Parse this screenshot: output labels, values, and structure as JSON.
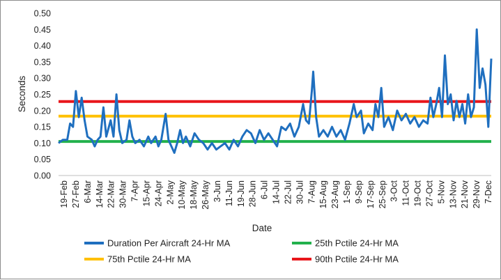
{
  "chart_data": {
    "type": "line",
    "title": "",
    "xlabel": "Date",
    "ylabel": "Seconds",
    "ylim": [
      0,
      0.5
    ],
    "y_ticks": [
      "0.00",
      "0.05",
      "0.10",
      "0.15",
      "0.20",
      "0.25",
      "0.30",
      "0.35",
      "0.40",
      "0.45",
      "0.50"
    ],
    "grid": false,
    "legend_position": "bottom",
    "x_range": [
      "2021-02-19",
      "2021-12-15"
    ],
    "x_tick_labels": [
      "19-Feb",
      "27-Feb",
      "6-Mar",
      "14-Mar",
      "22-Mar",
      "30-Mar",
      "7-Apr",
      "15-Apr",
      "24-Apr",
      "2-May",
      "10-May",
      "18-May",
      "26-May",
      "3-Jun",
      "11-Jun",
      "19-Jun",
      "28-Jun",
      "6-Jul",
      "14-Jul",
      "22-Jul",
      "30-Jul",
      "7-Aug",
      "15-Aug",
      "23-Aug",
      "1-Sep",
      "9-Sep",
      "17-Sep",
      "25-Sep",
      "3-Oct",
      "11-Oct",
      "19-Oct",
      "27-Oct",
      "5-Nov",
      "13-Nov",
      "21-Nov",
      "29-Nov",
      "7-Dec"
    ],
    "series": [
      {
        "name": "Duration Per Aircraft 24-Hr MA",
        "color": "#1f6fbf",
        "points": [
          [
            "2021-02-19",
            0.1
          ],
          [
            "2021-02-22",
            0.11
          ],
          [
            "2021-02-25",
            0.11
          ],
          [
            "2021-02-27",
            0.16
          ],
          [
            "2021-03-01",
            0.15
          ],
          [
            "2021-03-03",
            0.26
          ],
          [
            "2021-03-05",
            0.18
          ],
          [
            "2021-03-07",
            0.24
          ],
          [
            "2021-03-09",
            0.17
          ],
          [
            "2021-03-11",
            0.12
          ],
          [
            "2021-03-14",
            0.11
          ],
          [
            "2021-03-16",
            0.09
          ],
          [
            "2021-03-18",
            0.11
          ],
          [
            "2021-03-20",
            0.12
          ],
          [
            "2021-03-22",
            0.21
          ],
          [
            "2021-03-24",
            0.12
          ],
          [
            "2021-03-27",
            0.17
          ],
          [
            "2021-03-29",
            0.12
          ],
          [
            "2021-03-31",
            0.25
          ],
          [
            "2021-04-02",
            0.14
          ],
          [
            "2021-04-04",
            0.1
          ],
          [
            "2021-04-07",
            0.11
          ],
          [
            "2021-04-09",
            0.17
          ],
          [
            "2021-04-11",
            0.12
          ],
          [
            "2021-04-13",
            0.1
          ],
          [
            "2021-04-16",
            0.11
          ],
          [
            "2021-04-19",
            0.09
          ],
          [
            "2021-04-22",
            0.12
          ],
          [
            "2021-04-24",
            0.1
          ],
          [
            "2021-04-27",
            0.12
          ],
          [
            "2021-04-29",
            0.09
          ],
          [
            "2021-05-01",
            0.11
          ],
          [
            "2021-05-04",
            0.19
          ],
          [
            "2021-05-06",
            0.11
          ],
          [
            "2021-05-08",
            0.09
          ],
          [
            "2021-05-10",
            0.07
          ],
          [
            "2021-05-12",
            0.1
          ],
          [
            "2021-05-14",
            0.14
          ],
          [
            "2021-05-16",
            0.1
          ],
          [
            "2021-05-18",
            0.12
          ],
          [
            "2021-05-21",
            0.09
          ],
          [
            "2021-05-24",
            0.13
          ],
          [
            "2021-05-27",
            0.11
          ],
          [
            "2021-05-30",
            0.1
          ],
          [
            "2021-06-02",
            0.08
          ],
          [
            "2021-06-05",
            0.1
          ],
          [
            "2021-06-08",
            0.08
          ],
          [
            "2021-06-11",
            0.09
          ],
          [
            "2021-06-14",
            0.1
          ],
          [
            "2021-06-17",
            0.08
          ],
          [
            "2021-06-20",
            0.11
          ],
          [
            "2021-06-23",
            0.09
          ],
          [
            "2021-06-26",
            0.12
          ],
          [
            "2021-06-29",
            0.14
          ],
          [
            "2021-07-02",
            0.13
          ],
          [
            "2021-07-05",
            0.1
          ],
          [
            "2021-07-08",
            0.14
          ],
          [
            "2021-07-11",
            0.11
          ],
          [
            "2021-07-14",
            0.13
          ],
          [
            "2021-07-17",
            0.11
          ],
          [
            "2021-07-20",
            0.09
          ],
          [
            "2021-07-23",
            0.15
          ],
          [
            "2021-07-26",
            0.14
          ],
          [
            "2021-07-29",
            0.16
          ],
          [
            "2021-08-01",
            0.12
          ],
          [
            "2021-08-04",
            0.15
          ],
          [
            "2021-08-07",
            0.22
          ],
          [
            "2021-08-09",
            0.17
          ],
          [
            "2021-08-11",
            0.16
          ],
          [
            "2021-08-13",
            0.26
          ],
          [
            "2021-08-14",
            0.32
          ],
          [
            "2021-08-16",
            0.18
          ],
          [
            "2021-08-18",
            0.12
          ],
          [
            "2021-08-21",
            0.14
          ],
          [
            "2021-08-24",
            0.12
          ],
          [
            "2021-08-27",
            0.15
          ],
          [
            "2021-08-30",
            0.12
          ],
          [
            "2021-09-02",
            0.14
          ],
          [
            "2021-09-05",
            0.11
          ],
          [
            "2021-09-08",
            0.16
          ],
          [
            "2021-09-11",
            0.22
          ],
          [
            "2021-09-13",
            0.18
          ],
          [
            "2021-09-16",
            0.2
          ],
          [
            "2021-09-18",
            0.13
          ],
          [
            "2021-09-21",
            0.16
          ],
          [
            "2021-09-24",
            0.14
          ],
          [
            "2021-09-26",
            0.22
          ],
          [
            "2021-09-28",
            0.18
          ],
          [
            "2021-09-30",
            0.27
          ],
          [
            "2021-10-02",
            0.15
          ],
          [
            "2021-10-05",
            0.18
          ],
          [
            "2021-10-08",
            0.14
          ],
          [
            "2021-10-11",
            0.2
          ],
          [
            "2021-10-14",
            0.17
          ],
          [
            "2021-10-17",
            0.19
          ],
          [
            "2021-10-20",
            0.16
          ],
          [
            "2021-10-23",
            0.18
          ],
          [
            "2021-10-26",
            0.15
          ],
          [
            "2021-10-29",
            0.17
          ],
          [
            "2021-11-01",
            0.16
          ],
          [
            "2021-11-03",
            0.24
          ],
          [
            "2021-11-05",
            0.18
          ],
          [
            "2021-11-07",
            0.22
          ],
          [
            "2021-11-09",
            0.27
          ],
          [
            "2021-11-11",
            0.18
          ],
          [
            "2021-11-13",
            0.37
          ],
          [
            "2021-11-15",
            0.22
          ],
          [
            "2021-11-17",
            0.25
          ],
          [
            "2021-11-19",
            0.17
          ],
          [
            "2021-11-21",
            0.23
          ],
          [
            "2021-11-23",
            0.18
          ],
          [
            "2021-11-25",
            0.22
          ],
          [
            "2021-11-27",
            0.16
          ],
          [
            "2021-11-29",
            0.25
          ],
          [
            "2021-12-01",
            0.18
          ],
          [
            "2021-12-03",
            0.21
          ],
          [
            "2021-12-05",
            0.45
          ],
          [
            "2021-12-07",
            0.27
          ],
          [
            "2021-12-09",
            0.33
          ],
          [
            "2021-12-11",
            0.28
          ],
          [
            "2021-12-13",
            0.15
          ],
          [
            "2021-12-15",
            0.36
          ]
        ]
      },
      {
        "name": "25th Pctile 24-Hr MA",
        "color": "#22b14c",
        "points": [
          [
            "2021-02-19",
            0.105
          ],
          [
            "2021-12-15",
            0.105
          ]
        ]
      },
      {
        "name": "75th Pctile 24-Hr MA",
        "color": "#ffc000",
        "points": [
          [
            "2021-02-19",
            0.183
          ],
          [
            "2021-12-15",
            0.183
          ]
        ]
      },
      {
        "name": "90th Pctile 24-Hr MA",
        "color": "#e8161b",
        "points": [
          [
            "2021-02-19",
            0.228
          ],
          [
            "2021-12-15",
            0.228
          ]
        ]
      }
    ]
  }
}
